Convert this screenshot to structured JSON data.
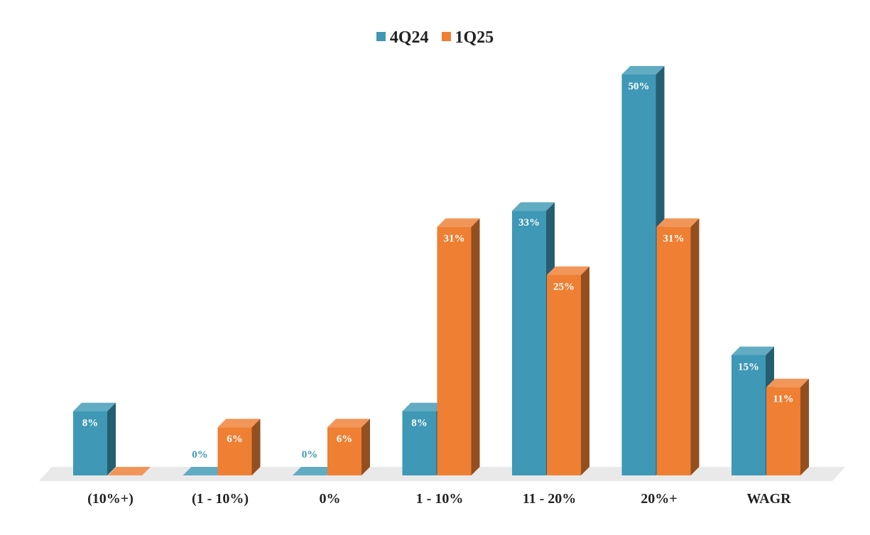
{
  "chart_data": {
    "type": "bar",
    "title": "",
    "xlabel": "",
    "ylabel": "",
    "ylim": [
      0,
      50
    ],
    "grid": false,
    "legend_position": "top-center",
    "categories": [
      "(10%+)",
      "(1 - 10%)",
      "0%",
      "1 - 10%",
      "11 - 20%",
      "20%+",
      "WAGR"
    ],
    "series": [
      {
        "name": "4Q24",
        "color": "#3e98b6",
        "values": [
          8,
          0,
          0,
          8,
          33,
          50,
          15
        ],
        "labels": [
          "8%",
          "0%",
          "0%",
          "8%",
          "33%",
          "50%",
          "15%"
        ]
      },
      {
        "name": "1Q25",
        "color": "#ee7f33",
        "values": [
          0,
          6,
          6,
          31,
          25,
          31,
          11
        ],
        "labels": [
          "",
          "6%",
          "6%",
          "31%",
          "25%",
          "31%",
          "11%"
        ]
      }
    ]
  }
}
